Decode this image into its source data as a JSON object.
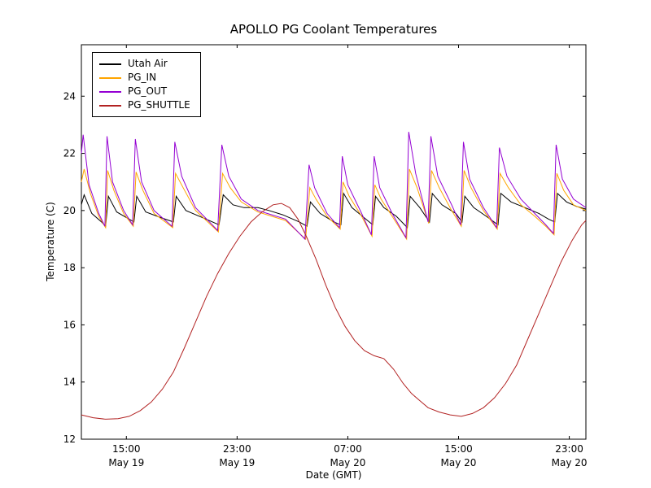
{
  "chart_data": {
    "type": "line",
    "title": "APOLLO PG Coolant Temperatures",
    "xlabel": "Date (GMT)",
    "ylabel": "Temperature (C)",
    "x_unit": "hours since May 19 00:00 (GMT)",
    "xlim": [
      11.75,
      48.2
    ],
    "ylim": [
      12,
      25.8
    ],
    "grid": false,
    "legend_position": "upper left",
    "y_ticks": [
      12,
      14,
      16,
      18,
      20,
      22,
      24
    ],
    "x_ticks": [
      {
        "t": 15,
        "time": "15:00",
        "date": "May 19"
      },
      {
        "t": 23,
        "time": "23:00",
        "date": "May 19"
      },
      {
        "t": 31,
        "time": "07:00",
        "date": "May 20"
      },
      {
        "t": 39,
        "time": "15:00",
        "date": "May 20"
      },
      {
        "t": 47,
        "time": "23:00",
        "date": "May 20"
      }
    ],
    "series": [
      {
        "name": "Utah Air",
        "color": "#000000",
        "points": [
          [
            11.75,
            20.2
          ],
          [
            11.95,
            20.55
          ],
          [
            12.5,
            19.9
          ],
          [
            13.2,
            19.6
          ],
          [
            13.5,
            19.45
          ],
          [
            13.7,
            20.5
          ],
          [
            14.3,
            19.95
          ],
          [
            15.2,
            19.7
          ],
          [
            15.55,
            19.6
          ],
          [
            15.75,
            20.5
          ],
          [
            16.4,
            19.95
          ],
          [
            17.5,
            19.75
          ],
          [
            18.4,
            19.6
          ],
          [
            18.6,
            20.5
          ],
          [
            19.3,
            20.0
          ],
          [
            20.5,
            19.75
          ],
          [
            21.7,
            19.5
          ],
          [
            22.0,
            20.55
          ],
          [
            22.7,
            20.2
          ],
          [
            23.5,
            20.1
          ],
          [
            24.5,
            20.1
          ],
          [
            25.3,
            20.0
          ],
          [
            26.3,
            19.85
          ],
          [
            27.5,
            19.6
          ],
          [
            28.05,
            19.45
          ],
          [
            28.3,
            20.3
          ],
          [
            29.0,
            19.9
          ],
          [
            30.0,
            19.6
          ],
          [
            30.5,
            19.5
          ],
          [
            30.7,
            20.6
          ],
          [
            31.3,
            20.1
          ],
          [
            32.3,
            19.7
          ],
          [
            32.8,
            19.5
          ],
          [
            33.0,
            20.5
          ],
          [
            33.6,
            20.1
          ],
          [
            34.5,
            19.8
          ],
          [
            35.3,
            19.4
          ],
          [
            35.5,
            20.5
          ],
          [
            36.2,
            20.1
          ],
          [
            36.9,
            19.6
          ],
          [
            37.1,
            20.6
          ],
          [
            37.8,
            20.2
          ],
          [
            38.8,
            19.9
          ],
          [
            39.25,
            19.6
          ],
          [
            39.45,
            20.5
          ],
          [
            40.1,
            20.1
          ],
          [
            41.0,
            19.8
          ],
          [
            41.85,
            19.5
          ],
          [
            42.05,
            20.6
          ],
          [
            42.8,
            20.3
          ],
          [
            43.8,
            20.1
          ],
          [
            44.8,
            19.9
          ],
          [
            45.5,
            19.7
          ],
          [
            45.95,
            19.6
          ],
          [
            46.15,
            20.6
          ],
          [
            46.8,
            20.3
          ],
          [
            47.5,
            20.15
          ],
          [
            48.2,
            20.05
          ]
        ]
      },
      {
        "name": "PG_IN",
        "color": "#ffa500",
        "points": [
          [
            11.75,
            21.0
          ],
          [
            11.95,
            21.45
          ],
          [
            12.4,
            20.6
          ],
          [
            13.0,
            19.8
          ],
          [
            13.5,
            19.4
          ],
          [
            13.65,
            21.4
          ],
          [
            14.1,
            20.7
          ],
          [
            14.8,
            19.9
          ],
          [
            15.5,
            19.45
          ],
          [
            15.7,
            21.35
          ],
          [
            16.2,
            20.7
          ],
          [
            17.0,
            19.9
          ],
          [
            18.35,
            19.4
          ],
          [
            18.55,
            21.3
          ],
          [
            19.1,
            20.8
          ],
          [
            20.0,
            20.0
          ],
          [
            21.65,
            19.25
          ],
          [
            21.95,
            21.3
          ],
          [
            22.5,
            20.8
          ],
          [
            23.3,
            20.3
          ],
          [
            24.5,
            19.95
          ],
          [
            25.5,
            19.8
          ],
          [
            26.5,
            19.65
          ],
          [
            27.95,
            19.0
          ],
          [
            28.25,
            20.8
          ],
          [
            28.7,
            20.4
          ],
          [
            29.5,
            19.8
          ],
          [
            30.45,
            19.35
          ],
          [
            30.65,
            21.0
          ],
          [
            31.1,
            20.5
          ],
          [
            32.0,
            19.8
          ],
          [
            32.75,
            19.1
          ],
          [
            32.95,
            20.9
          ],
          [
            33.4,
            20.4
          ],
          [
            34.2,
            19.8
          ],
          [
            35.25,
            19.0
          ],
          [
            35.45,
            21.45
          ],
          [
            36.0,
            20.8
          ],
          [
            36.85,
            19.55
          ],
          [
            37.05,
            21.4
          ],
          [
            37.6,
            20.8
          ],
          [
            38.5,
            20.0
          ],
          [
            39.2,
            19.45
          ],
          [
            39.4,
            21.4
          ],
          [
            39.9,
            20.8
          ],
          [
            40.8,
            20.0
          ],
          [
            41.8,
            19.35
          ],
          [
            42.0,
            21.3
          ],
          [
            42.6,
            20.8
          ],
          [
            43.5,
            20.2
          ],
          [
            44.5,
            19.8
          ],
          [
            45.3,
            19.45
          ],
          [
            45.9,
            19.15
          ],
          [
            46.1,
            21.3
          ],
          [
            46.6,
            20.7
          ],
          [
            47.3,
            20.2
          ],
          [
            48.2,
            20.0
          ]
        ]
      },
      {
        "name": "PG_OUT",
        "color": "#9400d3",
        "points": [
          [
            11.75,
            22.0
          ],
          [
            11.88,
            22.65
          ],
          [
            12.3,
            20.9
          ],
          [
            13.0,
            19.9
          ],
          [
            13.45,
            19.45
          ],
          [
            13.6,
            22.6
          ],
          [
            14.0,
            21.0
          ],
          [
            14.8,
            20.0
          ],
          [
            15.45,
            19.5
          ],
          [
            15.65,
            22.5
          ],
          [
            16.1,
            21.0
          ],
          [
            17.0,
            20.0
          ],
          [
            18.3,
            19.45
          ],
          [
            18.5,
            22.4
          ],
          [
            19.0,
            21.2
          ],
          [
            20.0,
            20.1
          ],
          [
            21.6,
            19.3
          ],
          [
            21.9,
            22.3
          ],
          [
            22.4,
            21.2
          ],
          [
            23.3,
            20.4
          ],
          [
            24.5,
            20.0
          ],
          [
            25.5,
            19.85
          ],
          [
            26.5,
            19.7
          ],
          [
            27.9,
            19.0
          ],
          [
            28.2,
            21.6
          ],
          [
            28.6,
            20.8
          ],
          [
            29.5,
            19.9
          ],
          [
            30.4,
            19.4
          ],
          [
            30.6,
            21.9
          ],
          [
            31.0,
            20.9
          ],
          [
            32.0,
            19.9
          ],
          [
            32.7,
            19.15
          ],
          [
            32.9,
            21.9
          ],
          [
            33.3,
            20.8
          ],
          [
            34.2,
            19.9
          ],
          [
            35.2,
            19.05
          ],
          [
            35.4,
            22.75
          ],
          [
            35.9,
            21.3
          ],
          [
            36.8,
            19.6
          ],
          [
            37.0,
            22.6
          ],
          [
            37.5,
            21.2
          ],
          [
            38.5,
            20.2
          ],
          [
            39.15,
            19.5
          ],
          [
            39.35,
            22.4
          ],
          [
            39.8,
            21.1
          ],
          [
            40.8,
            20.1
          ],
          [
            41.75,
            19.4
          ],
          [
            41.95,
            22.2
          ],
          [
            42.5,
            21.2
          ],
          [
            43.5,
            20.4
          ],
          [
            44.5,
            19.9
          ],
          [
            45.3,
            19.5
          ],
          [
            45.85,
            19.2
          ],
          [
            46.05,
            22.3
          ],
          [
            46.5,
            21.1
          ],
          [
            47.3,
            20.4
          ],
          [
            48.2,
            20.1
          ]
        ]
      },
      {
        "name": "PG_SHUTTLE",
        "color": "#b22222",
        "points": [
          [
            11.75,
            12.85
          ],
          [
            12.6,
            12.75
          ],
          [
            13.5,
            12.7
          ],
          [
            14.4,
            12.72
          ],
          [
            15.2,
            12.8
          ],
          [
            16.0,
            13.0
          ],
          [
            16.8,
            13.3
          ],
          [
            17.6,
            13.75
          ],
          [
            18.4,
            14.35
          ],
          [
            19.2,
            15.2
          ],
          [
            20.0,
            16.1
          ],
          [
            20.8,
            17.0
          ],
          [
            21.6,
            17.8
          ],
          [
            22.4,
            18.5
          ],
          [
            23.2,
            19.1
          ],
          [
            24.0,
            19.6
          ],
          [
            24.8,
            19.95
          ],
          [
            25.6,
            20.2
          ],
          [
            26.2,
            20.25
          ],
          [
            26.8,
            20.1
          ],
          [
            27.4,
            19.7
          ],
          [
            28.0,
            19.1
          ],
          [
            28.7,
            18.3
          ],
          [
            29.4,
            17.4
          ],
          [
            30.1,
            16.6
          ],
          [
            30.8,
            15.95
          ],
          [
            31.5,
            15.45
          ],
          [
            32.2,
            15.1
          ],
          [
            32.9,
            14.92
          ],
          [
            33.6,
            14.82
          ],
          [
            34.3,
            14.45
          ],
          [
            35.0,
            13.95
          ],
          [
            35.6,
            13.6
          ],
          [
            36.2,
            13.35
          ],
          [
            36.8,
            13.1
          ],
          [
            37.6,
            12.95
          ],
          [
            38.4,
            12.85
          ],
          [
            39.2,
            12.8
          ],
          [
            40.0,
            12.9
          ],
          [
            40.8,
            13.1
          ],
          [
            41.6,
            13.45
          ],
          [
            42.4,
            13.95
          ],
          [
            43.2,
            14.6
          ],
          [
            44.0,
            15.5
          ],
          [
            44.8,
            16.4
          ],
          [
            45.6,
            17.3
          ],
          [
            46.4,
            18.2
          ],
          [
            47.2,
            18.95
          ],
          [
            47.9,
            19.5
          ],
          [
            48.2,
            19.65
          ]
        ]
      }
    ]
  }
}
